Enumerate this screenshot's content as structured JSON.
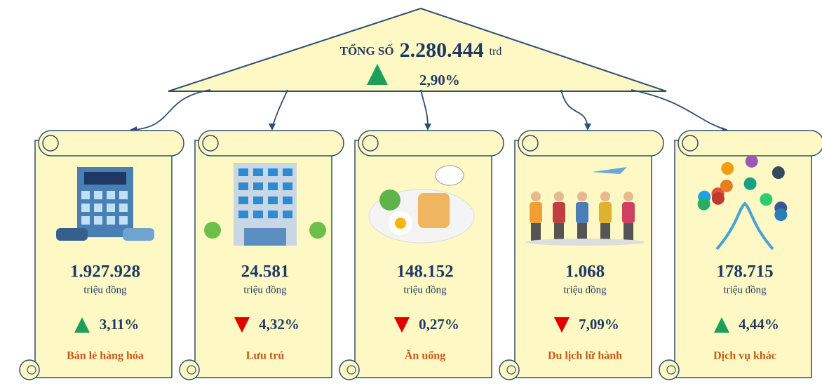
{
  "header": {
    "label": "TỔNG SỐ",
    "total": "2.280.444",
    "unit": "trđ",
    "change": "2,90%",
    "trend": "up"
  },
  "cards": [
    {
      "value": "1.927.928",
      "unit": "triệu đồng",
      "change": "3,11%",
      "trend": "up",
      "name": "Bán lẻ hàng hóa"
    },
    {
      "value": "24.581",
      "unit": "triệu đồng",
      "change": "4,32%",
      "trend": "down",
      "name": "Lưu trú"
    },
    {
      "value": "148.152",
      "unit": "triệu đồng",
      "change": "0,27%",
      "trend": "down",
      "name": "Ăn uống"
    },
    {
      "value": "1.068",
      "unit": "triệu đồng",
      "change": "7,09%",
      "trend": "down",
      "name": "Du lịch lữ hành"
    },
    {
      "value": "178.715",
      "unit": "triệu đồng",
      "change": "4,44%",
      "trend": "up",
      "name": "Dịch vụ khác"
    }
  ]
}
